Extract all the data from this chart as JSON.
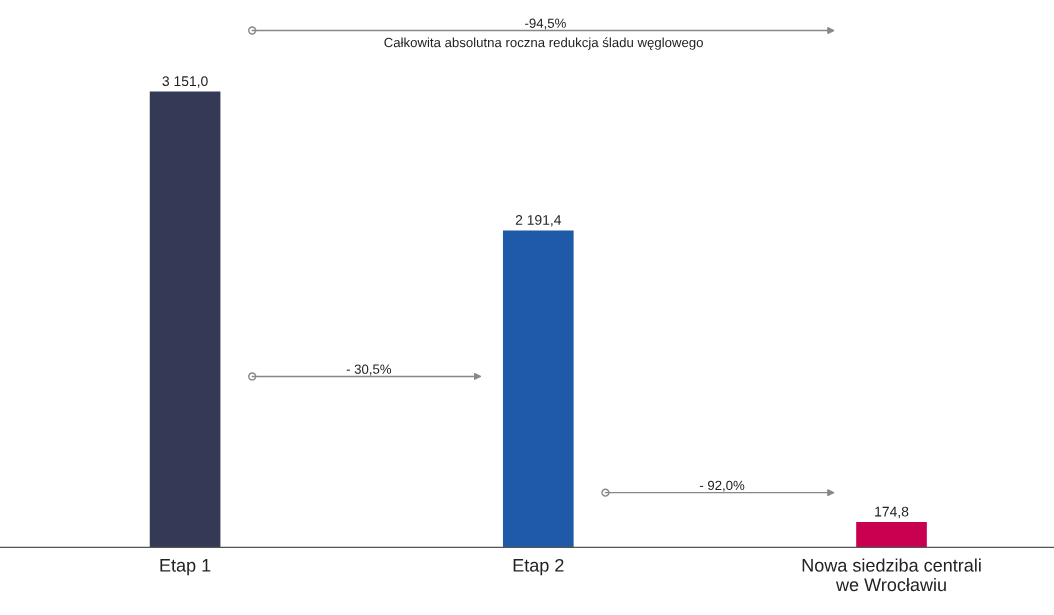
{
  "chart_data": {
    "type": "bar",
    "categories": [
      "Etap 1",
      "Etap 2",
      "Nowa siedziba centrali\nwe Wrocławiu"
    ],
    "values": [
      3151.0,
      2191.4,
      174.8
    ],
    "colors": [
      "#343a55",
      "#1f5aa8",
      "#c8004f"
    ],
    "value_labels": [
      "3 151,0",
      "2 191,4",
      "174,8"
    ],
    "annotations": [
      "-94,5%",
      "Całkowita absolutna roczna redukcja śladu węglowego",
      "- 30,5%",
      "- 92,0%"
    ],
    "grid": false,
    "legend": false
  }
}
